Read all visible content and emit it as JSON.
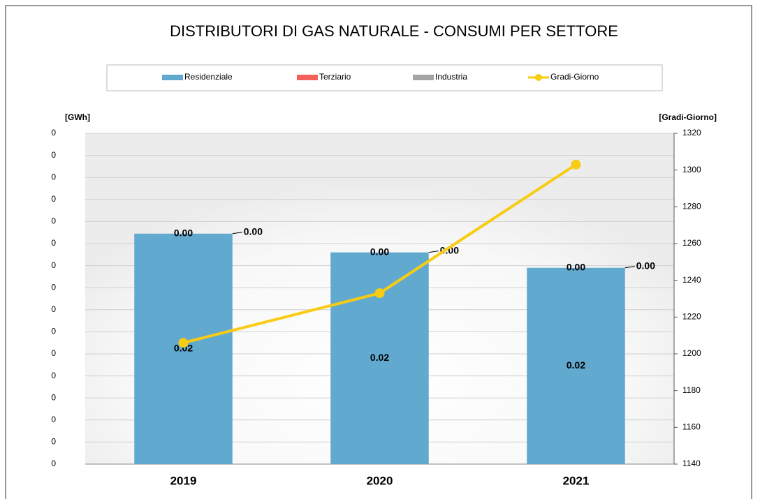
{
  "chart_data": {
    "type": "bar",
    "stacked": true,
    "title": "DISTRIBUTORI DI GAS NATURALE - CONSUMI PER SETTORE",
    "y_axis_title": "[GWh]",
    "y2_axis_title": "[Gradi-Giorno]",
    "categories": [
      "2019",
      "2020",
      "2021"
    ],
    "series": [
      {
        "name": "Residenziale",
        "type": "bar",
        "color": "#62a9cf",
        "values": [
          0.0209,
          0.0192,
          0.0178
        ],
        "value_labels": [
          "0.02",
          "0.02",
          "0.02"
        ]
      },
      {
        "name": "Terziario",
        "type": "bar",
        "color": "#f4615b",
        "values": [
          0,
          0,
          0
        ],
        "value_labels": [
          "0.00",
          "0.00",
          "0.00"
        ]
      },
      {
        "name": "Industria",
        "type": "bar",
        "color": "#a5a5a5",
        "values": [
          0,
          0,
          0
        ],
        "value_labels": [
          "0.00",
          "0.00",
          "0.00"
        ]
      },
      {
        "name": "Gradi-Giorno",
        "type": "line",
        "axis": "y2",
        "color": "#f7cc13",
        "values": [
          1206,
          1233,
          1303
        ]
      }
    ],
    "ylim": [
      0,
      0.03
    ],
    "yticks": [
      0,
      {
        "value": 0.002,
        "label": "0"
      },
      {
        "value": 0.004,
        "label": "0"
      },
      {
        "value": 0.006,
        "label": "0"
      },
      {
        "value": 0.008,
        "label": "0"
      },
      {
        "value": 0.01,
        "label": "0"
      },
      {
        "value": 0.012,
        "label": "0"
      },
      {
        "value": 0.014,
        "label": "0"
      },
      {
        "value": 0.016,
        "label": "0"
      },
      {
        "value": 0.018,
        "label": "0"
      },
      {
        "value": 0.02,
        "label": "0"
      },
      {
        "value": 0.022,
        "label": "0"
      },
      {
        "value": 0.024,
        "label": "0"
      },
      {
        "value": 0.026,
        "label": "0"
      },
      {
        "value": 0.028,
        "label": "0"
      },
      {
        "value": 0.03,
        "label": "0"
      }
    ],
    "y2lim": [
      1140,
      1320
    ],
    "y2ticks": [
      1140,
      1160,
      1180,
      1200,
      1220,
      1240,
      1260,
      1280,
      1300,
      1320
    ],
    "grid": true,
    "legend": "top"
  }
}
